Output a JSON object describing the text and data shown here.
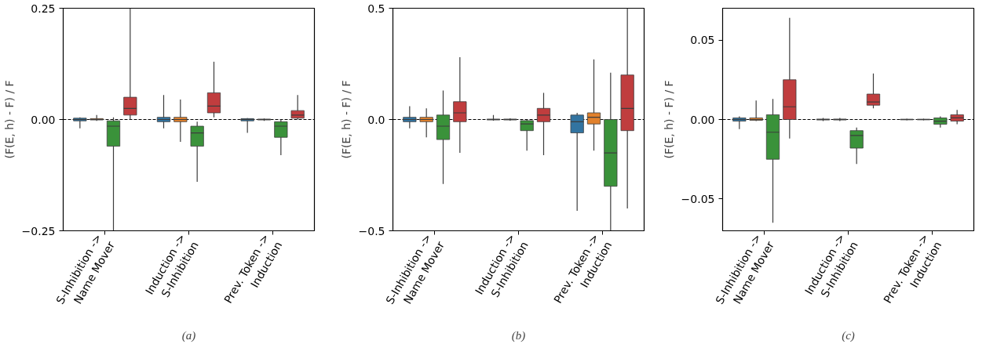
{
  "chart_data": [
    {
      "type": "box",
      "title": "(a)",
      "ylabel": "(F(E, h) - F) / F",
      "categories": [
        "S-Inhibition ->\nName Mover",
        "Induction ->\nS-Inhibition",
        "Prev. Token ->\nInduction"
      ],
      "ylim": [
        -0.25,
        0.25
      ],
      "yticks": [
        {
          "value": -0.25,
          "label": "−0.25"
        },
        {
          "value": 0,
          "label": "0.00"
        },
        {
          "value": 0.25,
          "label": "0.25"
        }
      ],
      "grid": false,
      "ref_lines": [
        {
          "axis": "y",
          "value": 0,
          "color": "#000000",
          "line_style": "dashed"
        }
      ],
      "series": [
        {
          "color": "#3274a1",
          "boxes": [
            {
              "low": -0.02,
              "q1": -0.003,
              "median": 0,
              "q3": 0.003,
              "high": 0.005
            },
            {
              "low": -0.02,
              "q1": -0.005,
              "median": 0,
              "q3": 0.005,
              "high": 0.055
            },
            {
              "low": -0.03,
              "q1": -0.003,
              "median": 0,
              "q3": 0.002,
              "high": 0.003
            }
          ]
        },
        {
          "color": "#e1812c",
          "boxes": [
            {
              "low": -0.003,
              "q1": -0.001,
              "median": 0,
              "q3": 0.002,
              "high": 0.01
            },
            {
              "low": -0.05,
              "q1": -0.005,
              "median": 0,
              "q3": 0.005,
              "high": 0.045
            },
            {
              "low": -0.003,
              "q1": -0.001,
              "median": 0,
              "q3": 0.001,
              "high": 0.002
            }
          ]
        },
        {
          "color": "#3a923a",
          "boxes": [
            {
              "low": -0.25,
              "q1": -0.06,
              "median": -0.015,
              "q3": -0.003,
              "high": 0.005
            },
            {
              "low": -0.14,
              "q1": -0.06,
              "median": -0.03,
              "q3": -0.015,
              "high": -0.005
            },
            {
              "low": -0.08,
              "q1": -0.04,
              "median": -0.015,
              "q3": -0.005,
              "high": 0
            }
          ]
        },
        {
          "color": "#c03d3e",
          "boxes": [
            {
              "low": 0,
              "q1": 0.01,
              "median": 0.025,
              "q3": 0.05,
              "high": 0.25
            },
            {
              "low": 0.005,
              "q1": 0.015,
              "median": 0.03,
              "q3": 0.06,
              "high": 0.13
            },
            {
              "low": 0,
              "q1": 0.003,
              "median": 0.01,
              "q3": 0.02,
              "high": 0.055
            }
          ]
        }
      ]
    },
    {
      "type": "box",
      "title": "(b)",
      "ylabel": "(F(E, h) - F) / F",
      "categories": [
        "S-Inhibition ->\nName Mover",
        "Induction ->\nS-Inhibition",
        "Prev. Token ->\nInduction"
      ],
      "ylim": [
        -0.5,
        0.5
      ],
      "yticks": [
        {
          "value": -0.5,
          "label": "−0.5"
        },
        {
          "value": 0,
          "label": "0.0"
        },
        {
          "value": 0.5,
          "label": "0.5"
        }
      ],
      "grid": false,
      "ref_lines": [
        {
          "axis": "y",
          "value": 0,
          "color": "#000000",
          "line_style": "dashed"
        }
      ],
      "series": [
        {
          "color": "#3274a1",
          "boxes": [
            {
              "low": -0.04,
              "q1": -0.01,
              "median": 0,
              "q3": 0.01,
              "high": 0.06
            },
            {
              "low": -0.005,
              "q1": -0.002,
              "median": 0,
              "q3": 0.002,
              "high": 0.02
            },
            {
              "low": -0.41,
              "q1": -0.06,
              "median": -0.01,
              "q3": 0.02,
              "high": 0.03
            }
          ]
        },
        {
          "color": "#e1812c",
          "boxes": [
            {
              "low": -0.08,
              "q1": -0.01,
              "median": 0,
              "q3": 0.01,
              "high": 0.05
            },
            {
              "low": -0.005,
              "q1": -0.002,
              "median": 0,
              "q3": 0.002,
              "high": 0.005
            },
            {
              "low": -0.14,
              "q1": -0.02,
              "median": 0.01,
              "q3": 0.03,
              "high": 0.27
            }
          ]
        },
        {
          "color": "#3a923a",
          "boxes": [
            {
              "low": -0.29,
              "q1": -0.09,
              "median": -0.03,
              "q3": 0.02,
              "high": 0.13
            },
            {
              "low": -0.14,
              "q1": -0.05,
              "median": -0.02,
              "q3": -0.005,
              "high": 0
            },
            {
              "low": -0.5,
              "q1": -0.3,
              "median": -0.15,
              "q3": 0,
              "high": 0.21
            }
          ]
        },
        {
          "color": "#c03d3e",
          "boxes": [
            {
              "low": -0.15,
              "q1": -0.01,
              "median": 0.03,
              "q3": 0.08,
              "high": 0.28
            },
            {
              "low": -0.16,
              "q1": -0.01,
              "median": 0.02,
              "q3": 0.05,
              "high": 0.12
            },
            {
              "low": -0.4,
              "q1": -0.05,
              "median": 0.05,
              "q3": 0.2,
              "high": 0.5
            }
          ]
        }
      ]
    },
    {
      "type": "box",
      "title": "(c)",
      "ylabel": "(F(E, h) - F) / F",
      "categories": [
        "S-Inhibition ->\nName Mover",
        "Induction ->\nS-Inhibition",
        "Prev. Token ->\nInduction"
      ],
      "ylim": [
        -0.07,
        0.07
      ],
      "yticks": [
        {
          "value": -0.05,
          "label": "−0.05"
        },
        {
          "value": 0,
          "label": "0.00"
        },
        {
          "value": 0.05,
          "label": "0.05"
        }
      ],
      "grid": false,
      "ref_lines": [
        {
          "axis": "y",
          "value": 0,
          "color": "#000000",
          "line_style": "dashed"
        }
      ],
      "series": [
        {
          "color": "#3274a1",
          "boxes": [
            {
              "low": -0.006,
              "q1": -0.001,
              "median": 0,
              "q3": 0.001,
              "high": 0.002
            },
            {
              "low": -0.001,
              "q1": -0.0003,
              "median": 0,
              "q3": 0.0003,
              "high": 0.001
            },
            {
              "low": -0.0005,
              "q1": -0.0002,
              "median": 0,
              "q3": 0.0002,
              "high": 0.0005
            }
          ]
        },
        {
          "color": "#e1812c",
          "boxes": [
            {
              "low": -0.001,
              "q1": -0.0005,
              "median": 0,
              "q3": 0.001,
              "high": 0.012
            },
            {
              "low": -0.001,
              "q1": -0.0003,
              "median": 0,
              "q3": 0.0003,
              "high": 0.001
            },
            {
              "low": -0.0005,
              "q1": -0.0002,
              "median": 0,
              "q3": 0.0002,
              "high": 0.0005
            }
          ]
        },
        {
          "color": "#3a923a",
          "boxes": [
            {
              "low": -0.065,
              "q1": -0.025,
              "median": -0.008,
              "q3": 0.003,
              "high": 0.013
            },
            {
              "low": -0.028,
              "q1": -0.018,
              "median": -0.01,
              "q3": -0.007,
              "high": -0.005
            },
            {
              "low": -0.005,
              "q1": -0.003,
              "median": -0.001,
              "q3": 0.001,
              "high": 0.002
            }
          ]
        },
        {
          "color": "#c03d3e",
          "boxes": [
            {
              "low": -0.012,
              "q1": 0,
              "median": 0.008,
              "q3": 0.025,
              "high": 0.064
            },
            {
              "low": 0.007,
              "q1": 0.009,
              "median": 0.011,
              "q3": 0.016,
              "high": 0.029
            },
            {
              "low": -0.003,
              "q1": -0.001,
              "median": 0.001,
              "q3": 0.003,
              "high": 0.006
            }
          ]
        }
      ]
    }
  ]
}
